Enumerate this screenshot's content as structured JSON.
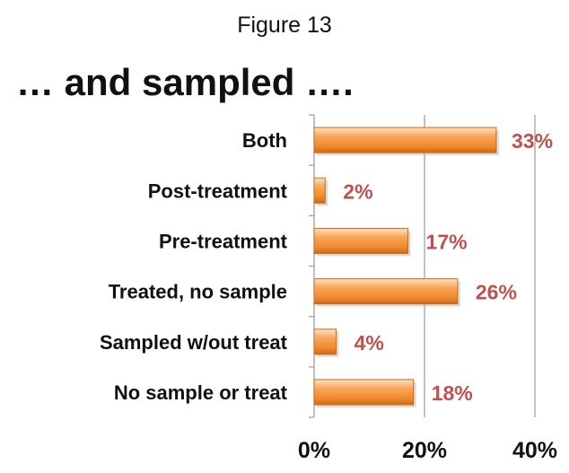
{
  "figure_label": "Figure 13",
  "heading": "… and sampled ….",
  "colors": {
    "bar": "#f79646",
    "bar_dark": "#c96a1c",
    "data_label": "#c0504d",
    "gridline": "#9a9a9a"
  },
  "chart_data": {
    "type": "bar",
    "orientation": "horizontal",
    "categories": [
      "Both",
      "Post-treatment",
      "Pre-treatment",
      "Treated, no sample",
      "Sampled w/out treat",
      "No sample or treat"
    ],
    "values": [
      33,
      2,
      17,
      26,
      4,
      18
    ],
    "data_labels": [
      "33%",
      "2%",
      "17%",
      "26%",
      "4%",
      "18%"
    ],
    "xlim": [
      0,
      40
    ],
    "x_ticks": [
      0,
      20,
      40
    ],
    "x_tick_labels": [
      "0%",
      "20%",
      "40%"
    ],
    "grid": true,
    "legend": "none"
  }
}
